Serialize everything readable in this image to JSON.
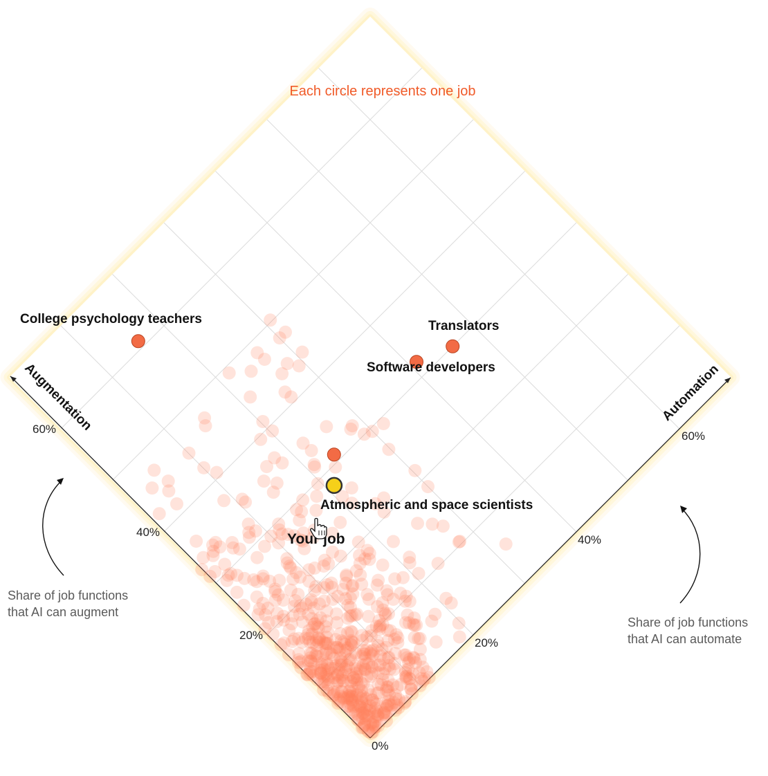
{
  "chart_data": {
    "type": "scatter",
    "subtitle": "Each circle represents one job",
    "x_axis": {
      "title": "Augmentation",
      "ticks": [
        "20%",
        "40%",
        "60%"
      ],
      "range": [
        0,
        70
      ]
    },
    "y_axis": {
      "title": "Automation",
      "ticks": [
        "20%",
        "40%",
        "60%"
      ],
      "range": [
        0,
        70
      ]
    },
    "origin_label": "0%",
    "augment_note": [
      "Share of job functions",
      "that AI can augment"
    ],
    "automate_note": [
      "Share of job functions",
      "that AI can automate"
    ],
    "highlighted": [
      {
        "name": "College psychology teachers",
        "augmentation": 61,
        "automation": 16
      },
      {
        "name": "Translators",
        "augmentation": 30,
        "automation": 46
      },
      {
        "name": "Software developers",
        "augmentation": 32,
        "automation": 41
      },
      {
        "name": "Atmospheric and space scientists",
        "augmentation": 31,
        "automation": 24
      }
    ],
    "your_job": {
      "name": "Your job",
      "augmentation": 28,
      "automation": 21
    },
    "background_count": 620,
    "colors": {
      "dot": "#ff7f5a",
      "highlight": "#f26b45",
      "your_job": "#f5d01a",
      "glow": "#fff7d1"
    }
  }
}
